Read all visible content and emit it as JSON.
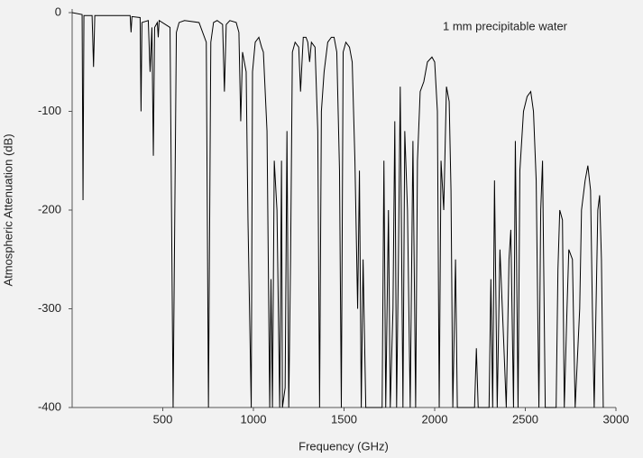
{
  "chart_data": {
    "type": "line",
    "annotation": "1 mm precipitable water",
    "xlabel": "Frequency (GHz)",
    "ylabel": "Atmospheric Attenuation (dB)",
    "color": "#000000",
    "xlim": [
      0,
      3000
    ],
    "xticks": [
      500,
      1000,
      1500,
      2000,
      2500,
      3000
    ],
    "ylim": [
      -400,
      0
    ],
    "yticks": [
      0,
      -100,
      -200,
      -300,
      -400
    ],
    "x": [
      0,
      55,
      60,
      65,
      110,
      118,
      125,
      320,
      325,
      330,
      375,
      380,
      385,
      420,
      430,
      440,
      448,
      455,
      470,
      475,
      480,
      540,
      557,
      575,
      590,
      620,
      700,
      740,
      752,
      765,
      780,
      800,
      830,
      840,
      850,
      870,
      905,
      920,
      930,
      940,
      960,
      970,
      988,
      995,
      1010,
      1030,
      1045,
      1055,
      1075,
      1090,
      1097,
      1105,
      1115,
      1130,
      1145,
      1155,
      1160,
      1175,
      1185,
      1195,
      1205,
      1215,
      1230,
      1250,
      1260,
      1275,
      1290,
      1300,
      1310,
      1320,
      1340,
      1355,
      1365,
      1375,
      1390,
      1410,
      1430,
      1445,
      1460,
      1475,
      1485,
      1495,
      1510,
      1530,
      1545,
      1560,
      1575,
      1585,
      1595,
      1605,
      1620,
      1710,
      1720,
      1730,
      1745,
      1755,
      1770,
      1780,
      1790,
      1800,
      1810,
      1825,
      1835,
      1850,
      1865,
      1880,
      1895,
      1905,
      1920,
      1940,
      1960,
      1985,
      2000,
      2015,
      2025,
      2035,
      2050,
      2065,
      2080,
      2090,
      2100,
      2115,
      2125,
      2220,
      2230,
      2240,
      2300,
      2310,
      2320,
      2330,
      2345,
      2360,
      2380,
      2395,
      2410,
      2420,
      2435,
      2445,
      2460,
      2470,
      2490,
      2510,
      2530,
      2545,
      2560,
      2575,
      2585,
      2595,
      2610,
      2670,
      2680,
      2690,
      2705,
      2715,
      2730,
      2740,
      2760,
      2775,
      2800,
      2810,
      2830,
      2845,
      2860,
      2870,
      2880,
      2900,
      2910,
      2920,
      2930
    ],
    "values": [
      0,
      -2,
      -190,
      -3,
      -3,
      -55,
      -3,
      -3,
      -20,
      -4,
      -5,
      -100,
      -10,
      -8,
      -60,
      -15,
      -145,
      -15,
      -10,
      -25,
      -8,
      -15,
      -400,
      -20,
      -10,
      -8,
      -10,
      -30,
      -400,
      -30,
      -10,
      -8,
      -12,
      -80,
      -12,
      -8,
      -10,
      -20,
      -110,
      -40,
      -60,
      -210,
      -400,
      -60,
      -30,
      -25,
      -35,
      -40,
      -120,
      -400,
      -270,
      -400,
      -150,
      -200,
      -400,
      -150,
      -400,
      -380,
      -120,
      -400,
      -250,
      -40,
      -30,
      -35,
      -80,
      -25,
      -25,
      -30,
      -50,
      -30,
      -35,
      -120,
      -400,
      -100,
      -60,
      -30,
      -25,
      -25,
      -40,
      -160,
      -400,
      -40,
      -30,
      -35,
      -50,
      -150,
      -300,
      -160,
      -400,
      -250,
      -400,
      -400,
      -150,
      -400,
      -200,
      -400,
      -300,
      -110,
      -400,
      -250,
      -75,
      -400,
      -120,
      -200,
      -400,
      -130,
      -400,
      -150,
      -80,
      -70,
      -50,
      -45,
      -50,
      -100,
      -400,
      -150,
      -200,
      -75,
      -90,
      -180,
      -400,
      -250,
      -400,
      -400,
      -340,
      -400,
      -400,
      -270,
      -400,
      -170,
      -400,
      -240,
      -330,
      -400,
      -250,
      -220,
      -400,
      -130,
      -400,
      -160,
      -100,
      -85,
      -80,
      -100,
      -170,
      -400,
      -200,
      -150,
      -400,
      -400,
      -260,
      -200,
      -210,
      -400,
      -300,
      -240,
      -250,
      -400,
      -300,
      -200,
      -170,
      -155,
      -180,
      -300,
      -400,
      -200,
      -185,
      -250,
      -400
    ]
  }
}
